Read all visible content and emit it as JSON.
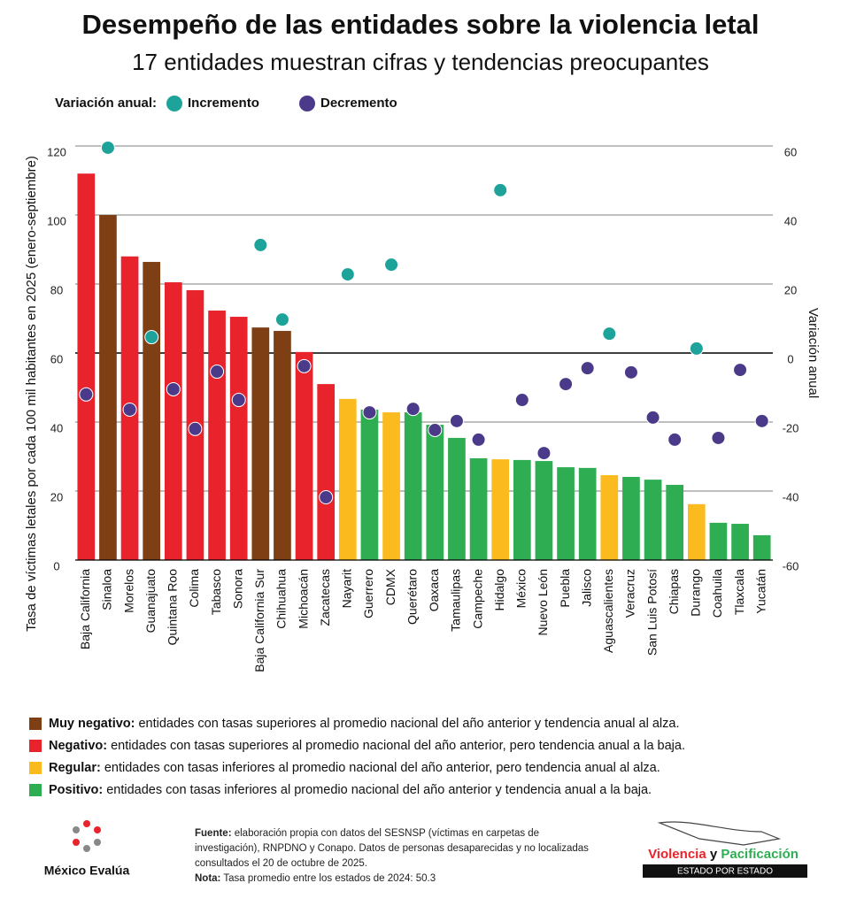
{
  "chart_data": {
    "type": "bar_dot",
    "title": "Desempeño de las entidades sobre la violencia letal",
    "subtitle": "17 entidades muestran cifras y tendencias preocupantes",
    "dot_legend_title": "Variación anual:",
    "dot_legend": [
      {
        "name": "Incremento",
        "color": "#1ea39b"
      },
      {
        "name": "Decremento",
        "color": "#4b3a8a"
      }
    ],
    "y_label": "Tasa de víctimas letales por cada 100 mil habitantes en 2025 (enero-septiembre)",
    "y2_label": "Variación anual",
    "categories": [
      "Baja California",
      "Sinaloa",
      "Morelos",
      "Guanajuato",
      "Quintana Roo",
      "Colima",
      "Tabasco",
      "Sonora",
      "Baja California Sur",
      "Chihuahua",
      "Michoacán",
      "Zacatecas",
      "Nayarit",
      "Guerrero",
      "CDMX",
      "Querétaro",
      "Oaxaca",
      "Tamaulipas",
      "Campeche",
      "Hidalgo",
      "México",
      "Nuevo León",
      "Puebla",
      "Jalisco",
      "Aguascalientes",
      "Veracruz",
      "San Luis Potosí",
      "Chiapas",
      "Durango",
      "Coahuila",
      "Tlaxcala",
      "Yucatán"
    ],
    "values": [
      112,
      100,
      88,
      86.4,
      80.5,
      78.2,
      72.3,
      70.5,
      67.4,
      66.4,
      60.3,
      51,
      46.7,
      43.6,
      42.8,
      42.8,
      39.2,
      35.4,
      29.5,
      29.2,
      29,
      28.7,
      26.9,
      26.7,
      24.6,
      24.1,
      23.3,
      21.8,
      16.2,
      10.8,
      10.5,
      7.2
    ],
    "y2_values": [
      -12,
      59.5,
      -16.4,
      4.6,
      -10.5,
      -22,
      -5.4,
      -13.6,
      31.3,
      9.7,
      -3.8,
      -41.8,
      22.8,
      -17.2,
      25.6,
      -16.2,
      -22.3,
      -19.7,
      -25.1,
      47.2,
      -13.6,
      -29,
      -9,
      -4.4,
      5.6,
      -5.6,
      -18.7,
      -25.1,
      1.3,
      -24.6,
      -4.9,
      -19.7
    ],
    "bar_classes": [
      1,
      0,
      1,
      0,
      1,
      1,
      1,
      1,
      0,
      0,
      1,
      1,
      2,
      3,
      2,
      3,
      3,
      3,
      3,
      2,
      3,
      3,
      3,
      3,
      2,
      3,
      3,
      3,
      2,
      3,
      3,
      3
    ],
    "classes": [
      {
        "name": "Muy negativo:",
        "description": "entidades con tasas superiores al promedio nacional del año anterior y tendencia anual al alza.",
        "color": "#7e3f15"
      },
      {
        "name": "Negativo:",
        "description": "entidades con tasas superiores al promedio nacional del año anterior, pero tendencia anual a la baja.",
        "color": "#e8232b"
      },
      {
        "name": "Regular:",
        "description": "entidades con tasas inferiores al promedio nacional del año anterior, pero tendencia anual al alza.",
        "color": "#fbbb1f"
      },
      {
        "name": "Positivo:",
        "description": "entidades con tasas inferiores al promedio nacional del año anterior y tendencia anual a la baja.",
        "color": "#2fad52"
      }
    ],
    "ylim": [
      0,
      120
    ],
    "yticks": [
      0,
      20,
      40,
      60,
      80,
      100,
      120
    ],
    "y2lim": [
      -60,
      60
    ],
    "y2ticks": [
      -60,
      -40,
      -20,
      0,
      20,
      40,
      60
    ],
    "grid": true
  },
  "footer": {
    "org": "México Evalúa",
    "source_label": "Fuente:",
    "source_lines": [
      "elaboración propia con datos del SESNSP (víctimas en carpetas de",
      "investigación), RNPDNO y Conapo. Datos de personas desaparecidas y no localizadas",
      "consultados el 20 de octubre de 2025."
    ],
    "note_label": "Nota:",
    "note": "Tasa promedio entre los estados de 2024: 50.3",
    "brand_a": "Violencia",
    "brand_b": "y",
    "brand_c": "Pacificación",
    "brand_sub": "ESTADO POR ESTADO"
  }
}
